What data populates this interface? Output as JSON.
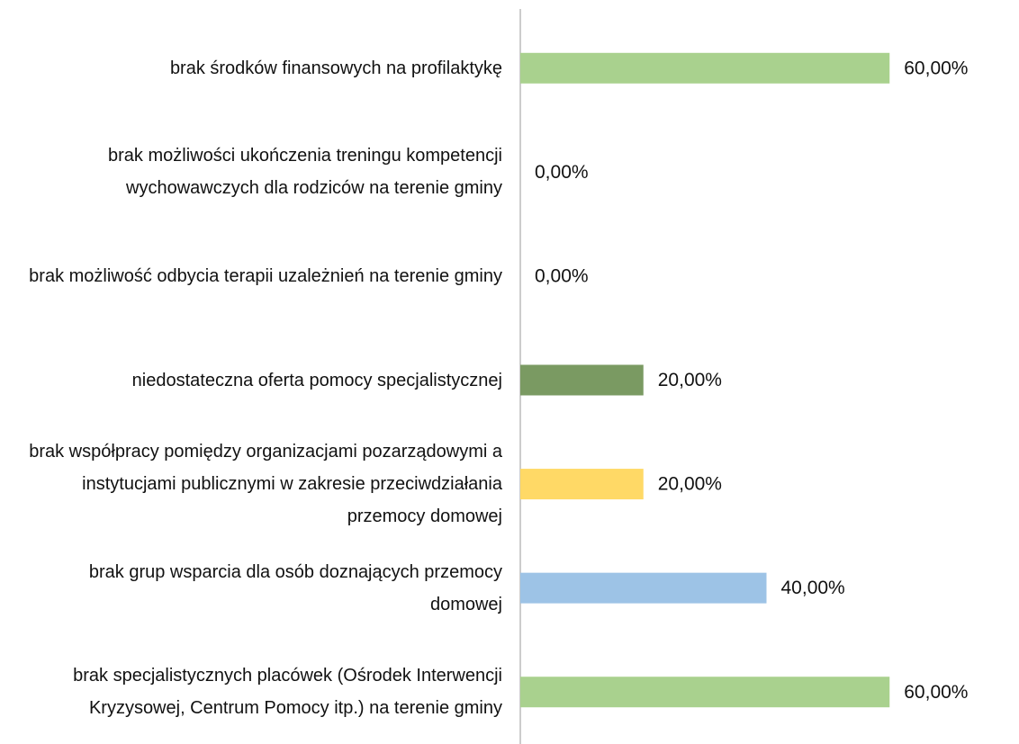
{
  "chart_data": {
    "type": "hbar",
    "categories": [
      "brak środków finansowych na profilaktykę",
      "brak możliwości ukończenia treningu kompetencji wychowawczych dla rodziców na terenie gminy",
      "brak możliwość odbycia terapii uzależnień  na terenie gminy",
      "niedostateczna oferta pomocy specjalistycznej",
      "brak współpracy pomiędzy organizacjami pozarządowymi a instytucjami publicznymi w zakresie przeciwdziałania przemocy domowej",
      "brak grup wsparcia dla osób doznających przemocy domowej",
      "brak specjalistycznych placówek (Ośrodek Interwencji Kryzysowej, Centrum Pomocy itp.) na terenie gminy"
    ],
    "values": [
      60,
      0,
      0,
      20,
      20,
      40,
      60
    ],
    "value_labels": [
      "60,00%",
      "0,00%",
      "0,00%",
      "20,00%",
      "20,00%",
      "40,00%",
      "60,00%"
    ],
    "colors": [
      "#a9d18e",
      "#a9d18e",
      "#a9d18e",
      "#7a9a62",
      "#ffd966",
      "#9dc3e6",
      "#a9d18e"
    ],
    "xlim": [
      0,
      80
    ]
  }
}
